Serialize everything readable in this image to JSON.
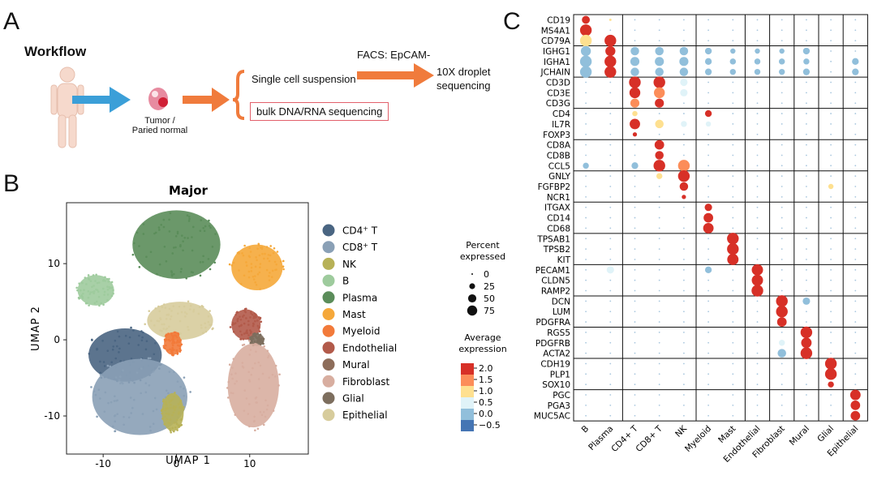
{
  "panel_a": {
    "letter": "A",
    "title": "Workflow",
    "tissue_label": "Tumor /\nParied normal",
    "steps": [
      "Single cell suspension",
      "bulk DNA/RNA sequencing"
    ],
    "facs_label": "FACS: EpCAM-",
    "droplet_label": "10X droplet\nsequencing"
  },
  "panel_b": {
    "letter": "B",
    "legend_header_size": "Percent\nexpressed",
    "size_legend": [
      0,
      25,
      50,
      75
    ],
    "legend_header_color": "Average\nexpression",
    "color_legend": [
      "2.0",
      "1.5",
      "1.0",
      "0.5",
      "0.0",
      "−0.5"
    ],
    "colors": {
      "scale": [
        "#d73027",
        "#fc8d59",
        "#fee090",
        "#e0f3f8",
        "#91bfdb",
        "#4575b4"
      ]
    }
  },
  "chart_data": [
    {
      "type": "scatter",
      "title": "Major",
      "xlabel": "UMAP 1",
      "ylabel": "UMAP 2",
      "xlim": [
        -15,
        18
      ],
      "ylim": [
        -15,
        18
      ],
      "xticks": [
        "-10",
        "0",
        "10"
      ],
      "yticks": [
        "10",
        "0",
        "-10"
      ],
      "legend_items": [
        {
          "label": "CD4",
          "sup": "+",
          "suffix": " T",
          "color": "#4a6582"
        },
        {
          "label": "CD8",
          "sup": "+",
          "suffix": " T",
          "color": "#8aa0b6"
        },
        {
          "label": "NK",
          "sup": "",
          "suffix": "",
          "color": "#b7b157"
        },
        {
          "label": "B",
          "sup": "",
          "suffix": "",
          "color": "#9ecb9d"
        },
        {
          "label": "Plasma",
          "sup": "",
          "suffix": "",
          "color": "#5b8d5a"
        },
        {
          "label": "Mast",
          "sup": "",
          "suffix": "",
          "color": "#f5a83a"
        },
        {
          "label": "Myeloid",
          "sup": "",
          "suffix": "",
          "color": "#f27a3a"
        },
        {
          "label": "Endothelial",
          "sup": "",
          "suffix": "",
          "color": "#b25a4a"
        },
        {
          "label": "Mural",
          "sup": "",
          "suffix": "",
          "color": "#8d6d5a"
        },
        {
          "label": "Fibroblast",
          "sup": "",
          "suffix": "",
          "color": "#d8aea0"
        },
        {
          "label": "Glial",
          "sup": "",
          "suffix": "",
          "color": "#7d6e5e"
        },
        {
          "label": "Epithelial",
          "sup": "",
          "suffix": "",
          "color": "#d7cc9c"
        }
      ],
      "clusters": [
        {
          "name": "Plasma",
          "color": "#5b8d5a",
          "cx": 0,
          "cy": 12.5,
          "rx": 6,
          "ry": 4.5
        },
        {
          "name": "B",
          "color": "#9ecb9d",
          "cx": -11,
          "cy": 6.5,
          "rx": 2.5,
          "ry": 2
        },
        {
          "name": "Mast",
          "color": "#f5a83a",
          "cx": 11,
          "cy": 9.5,
          "rx": 3.5,
          "ry": 3
        },
        {
          "name": "Epithelial",
          "color": "#d7cc9c",
          "cx": 0.5,
          "cy": 2.5,
          "rx": 4.5,
          "ry": 2.5
        },
        {
          "name": "Myeloid",
          "color": "#f27a3a",
          "cx": -0.5,
          "cy": -0.5,
          "rx": 1.2,
          "ry": 1.5
        },
        {
          "name": "Endothelial",
          "color": "#b25a4a",
          "cx": 9.5,
          "cy": 2,
          "rx": 2,
          "ry": 2
        },
        {
          "name": "Glial",
          "color": "#7d6e5e",
          "cx": 11,
          "cy": 0,
          "rx": 1,
          "ry": 0.8
        },
        {
          "name": "Fibroblast",
          "color": "#d8aea0",
          "cx": 10.5,
          "cy": -6,
          "rx": 3.5,
          "ry": 5.5
        },
        {
          "name": "CD4 T",
          "color": "#4a6582",
          "cx": -7,
          "cy": -2,
          "rx": 5,
          "ry": 3.5
        },
        {
          "name": "CD8 T",
          "color": "#8aa0b6",
          "cx": -5,
          "cy": -7.5,
          "rx": 6.5,
          "ry": 5
        },
        {
          "name": "NK",
          "color": "#b7b157",
          "cx": -0.5,
          "cy": -9.5,
          "rx": 1.5,
          "ry": 2.5
        }
      ]
    },
    {
      "type": "dotplot",
      "title": "",
      "letter": "C",
      "celltypes": [
        "B",
        "Plasma",
        "CD4+ T",
        "CD8+ T",
        "NK",
        "Myeloid",
        "Mast",
        "Endothelial",
        "Fibroblast",
        "Mural",
        "Glial",
        "Epithelial"
      ],
      "genes": [
        "CD19",
        "MS4A1",
        "CD79A",
        "IGHG1",
        "IGHA1",
        "JCHAIN",
        "CD3D",
        "CD3E",
        "CD3G",
        "CD4",
        "IL7R",
        "FOXP3",
        "CD8A",
        "CD8B",
        "CCL5",
        "GNLY",
        "FGFBP2",
        "NCR1",
        "ITGAX",
        "CD14",
        "CD68",
        "TPSAB1",
        "TPSB2",
        "KIT",
        "PECAM1",
        "CLDN5",
        "RAMP2",
        "DCN",
        "LUM",
        "PDGFRA",
        "RGS5",
        "PDGFRB",
        "ACTA2",
        "CDH19",
        "PLP1",
        "SOX10",
        "PGC",
        "PGA3",
        "MUC5AC"
      ],
      "group_sizes": [
        3,
        3,
        3,
        3,
        3,
        3,
        3,
        3,
        3,
        3,
        3,
        3,
        3
      ],
      "points": [
        {
          "g": "CD19",
          "c": "B",
          "pct": 35,
          "expr": 2.0
        },
        {
          "g": "CD19",
          "c": "Plasma",
          "pct": 3,
          "expr": 0.8
        },
        {
          "g": "MS4A1",
          "c": "B",
          "pct": 75,
          "expr": 2.0
        },
        {
          "g": "CD79A",
          "c": "B",
          "pct": 75,
          "expr": 1.0
        },
        {
          "g": "CD79A",
          "c": "Plasma",
          "pct": 75,
          "expr": 2.0
        },
        {
          "g": "IGHG1",
          "c": "B",
          "pct": 55,
          "expr": -0.2
        },
        {
          "g": "IGHG1",
          "c": "Plasma",
          "pct": 55,
          "expr": 2.0
        },
        {
          "g": "IGHG1",
          "c": "CD4+ T",
          "pct": 40,
          "expr": -0.2
        },
        {
          "g": "IGHG1",
          "c": "CD8+ T",
          "pct": 40,
          "expr": -0.2
        },
        {
          "g": "IGHG1",
          "c": "NK",
          "pct": 40,
          "expr": -0.2
        },
        {
          "g": "IGHG1",
          "c": "Myeloid",
          "pct": 25,
          "expr": -0.2
        },
        {
          "g": "IGHG1",
          "c": "Mast",
          "pct": 15,
          "expr": -0.2
        },
        {
          "g": "IGHG1",
          "c": "Endothelial",
          "pct": 15,
          "expr": -0.2
        },
        {
          "g": "IGHG1",
          "c": "Fibroblast",
          "pct": 15,
          "expr": -0.2
        },
        {
          "g": "IGHG1",
          "c": "Mural",
          "pct": 25,
          "expr": -0.2
        },
        {
          "g": "IGHA1",
          "c": "B",
          "pct": 75,
          "expr": -0.2
        },
        {
          "g": "IGHA1",
          "c": "Plasma",
          "pct": 75,
          "expr": 2.0
        },
        {
          "g": "IGHA1",
          "c": "CD4+ T",
          "pct": 45,
          "expr": -0.2
        },
        {
          "g": "IGHA1",
          "c": "CD8+ T",
          "pct": 45,
          "expr": -0.2
        },
        {
          "g": "IGHA1",
          "c": "NK",
          "pct": 45,
          "expr": -0.2
        },
        {
          "g": "IGHA1",
          "c": "Myeloid",
          "pct": 25,
          "expr": -0.2
        },
        {
          "g": "IGHA1",
          "c": "Mast",
          "pct": 20,
          "expr": -0.2
        },
        {
          "g": "IGHA1",
          "c": "Endothelial",
          "pct": 20,
          "expr": -0.2
        },
        {
          "g": "IGHA1",
          "c": "Fibroblast",
          "pct": 20,
          "expr": -0.2
        },
        {
          "g": "IGHA1",
          "c": "Mural",
          "pct": 20,
          "expr": -0.2
        },
        {
          "g": "IGHA1",
          "c": "Epithelial",
          "pct": 25,
          "expr": -0.2
        },
        {
          "g": "JCHAIN",
          "c": "B",
          "pct": 75,
          "expr": -0.2
        },
        {
          "g": "JCHAIN",
          "c": "Plasma",
          "pct": 75,
          "expr": 2.0
        },
        {
          "g": "JCHAIN",
          "c": "CD4+ T",
          "pct": 40,
          "expr": -0.2
        },
        {
          "g": "JCHAIN",
          "c": "CD8+ T",
          "pct": 40,
          "expr": -0.2
        },
        {
          "g": "JCHAIN",
          "c": "NK",
          "pct": 40,
          "expr": -0.2
        },
        {
          "g": "JCHAIN",
          "c": "Myeloid",
          "pct": 25,
          "expr": -0.2
        },
        {
          "g": "JCHAIN",
          "c": "Mast",
          "pct": 20,
          "expr": -0.2
        },
        {
          "g": "JCHAIN",
          "c": "Endothelial",
          "pct": 20,
          "expr": -0.2
        },
        {
          "g": "JCHAIN",
          "c": "Fibroblast",
          "pct": 20,
          "expr": -0.2
        },
        {
          "g": "JCHAIN",
          "c": "Mural",
          "pct": 25,
          "expr": -0.2
        },
        {
          "g": "JCHAIN",
          "c": "Epithelial",
          "pct": 25,
          "expr": -0.2
        },
        {
          "g": "CD3D",
          "c": "CD4+ T",
          "pct": 75,
          "expr": 2.0
        },
        {
          "g": "CD3D",
          "c": "CD8+ T",
          "pct": 75,
          "expr": 2.0
        },
        {
          "g": "CD3D",
          "c": "NK",
          "pct": 30,
          "expr": 0.3
        },
        {
          "g": "CD3E",
          "c": "CD4+ T",
          "pct": 65,
          "expr": 2.0
        },
        {
          "g": "CD3E",
          "c": "CD8+ T",
          "pct": 65,
          "expr": 1.5
        },
        {
          "g": "CD3E",
          "c": "NK",
          "pct": 30,
          "expr": 0.3
        },
        {
          "g": "CD3G",
          "c": "CD4+ T",
          "pct": 45,
          "expr": 1.6
        },
        {
          "g": "CD3G",
          "c": "CD8+ T",
          "pct": 45,
          "expr": 2.0
        },
        {
          "g": "CD4",
          "c": "CD4+ T",
          "pct": 15,
          "expr": 1.2
        },
        {
          "g": "CD4",
          "c": "Myeloid",
          "pct": 25,
          "expr": 2.0
        },
        {
          "g": "IL7R",
          "c": "CD4+ T",
          "pct": 60,
          "expr": 2.0
        },
        {
          "g": "IL7R",
          "c": "CD8+ T",
          "pct": 40,
          "expr": 1.0
        },
        {
          "g": "IL7R",
          "c": "NK",
          "pct": 20,
          "expr": 0.4
        },
        {
          "g": "IL7R",
          "c": "Myeloid",
          "pct": 15,
          "expr": 0.4
        },
        {
          "g": "FOXP3",
          "c": "CD4+ T",
          "pct": 10,
          "expr": 2.0
        },
        {
          "g": "CD8A",
          "c": "CD8+ T",
          "pct": 50,
          "expr": 2.0
        },
        {
          "g": "CD8B",
          "c": "CD8+ T",
          "pct": 40,
          "expr": 2.0
        },
        {
          "g": "CCL5",
          "c": "B",
          "pct": 20,
          "expr": -0.2
        },
        {
          "g": "CCL5",
          "c": "CD4+ T",
          "pct": 25,
          "expr": -0.2
        },
        {
          "g": "CCL5",
          "c": "CD8+ T",
          "pct": 75,
          "expr": 2.0
        },
        {
          "g": "CCL5",
          "c": "NK",
          "pct": 75,
          "expr": 1.6
        },
        {
          "g": "GNLY",
          "c": "CD8+ T",
          "pct": 20,
          "expr": 0.8
        },
        {
          "g": "GNLY",
          "c": "NK",
          "pct": 75,
          "expr": 2.0
        },
        {
          "g": "FGFBP2",
          "c": "NK",
          "pct": 40,
          "expr": 2.0
        },
        {
          "g": "FGFBP2",
          "c": "Glial",
          "pct": 15,
          "expr": 1.0
        },
        {
          "g": "NCR1",
          "c": "NK",
          "pct": 10,
          "expr": 2.0
        },
        {
          "g": "ITGAX",
          "c": "Myeloid",
          "pct": 30,
          "expr": 2.0
        },
        {
          "g": "CD14",
          "c": "Myeloid",
          "pct": 50,
          "expr": 2.0
        },
        {
          "g": "CD68",
          "c": "Myeloid",
          "pct": 60,
          "expr": 2.0
        },
        {
          "g": "TPSAB1",
          "c": "Mast",
          "pct": 75,
          "expr": 2.0
        },
        {
          "g": "TPSB2",
          "c": "Mast",
          "pct": 75,
          "expr": 2.0
        },
        {
          "g": "KIT",
          "c": "Mast",
          "pct": 70,
          "expr": 2.0
        },
        {
          "g": "PECAM1",
          "c": "Plasma",
          "pct": 30,
          "expr": 0.3
        },
        {
          "g": "PECAM1",
          "c": "Myeloid",
          "pct": 25,
          "expr": -0.2
        },
        {
          "g": "PECAM1",
          "c": "Endothelial",
          "pct": 70,
          "expr": 2.0
        },
        {
          "g": "CLDN5",
          "c": "Endothelial",
          "pct": 70,
          "expr": 2.0
        },
        {
          "g": "RAMP2",
          "c": "Endothelial",
          "pct": 75,
          "expr": 2.0
        },
        {
          "g": "DCN",
          "c": "Fibroblast",
          "pct": 75,
          "expr": 2.0
        },
        {
          "g": "DCN",
          "c": "Mural",
          "pct": 30,
          "expr": -0.2
        },
        {
          "g": "LUM",
          "c": "Fibroblast",
          "pct": 75,
          "expr": 2.0
        },
        {
          "g": "PDGFRA",
          "c": "Fibroblast",
          "pct": 50,
          "expr": 2.0
        },
        {
          "g": "RGS5",
          "c": "Mural",
          "pct": 75,
          "expr": 2.0
        },
        {
          "g": "PDGFRB",
          "c": "Fibroblast",
          "pct": 20,
          "expr": 0.3
        },
        {
          "g": "PDGFRB",
          "c": "Mural",
          "pct": 60,
          "expr": 2.0
        },
        {
          "g": "ACTA2",
          "c": "Fibroblast",
          "pct": 40,
          "expr": -0.2
        },
        {
          "g": "ACTA2",
          "c": "Mural",
          "pct": 75,
          "expr": 2.0
        },
        {
          "g": "CDH19",
          "c": "Glial",
          "pct": 75,
          "expr": 2.0
        },
        {
          "g": "PLP1",
          "c": "Glial",
          "pct": 75,
          "expr": 2.0
        },
        {
          "g": "SOX10",
          "c": "Glial",
          "pct": 20,
          "expr": 2.0
        },
        {
          "g": "PGC",
          "c": "Epithelial",
          "pct": 60,
          "expr": 2.0
        },
        {
          "g": "PGA3",
          "c": "Epithelial",
          "pct": 50,
          "expr": 2.0
        },
        {
          "g": "MUC5AC",
          "c": "Epithelial",
          "pct": 50,
          "expr": 2.0
        }
      ]
    }
  ]
}
